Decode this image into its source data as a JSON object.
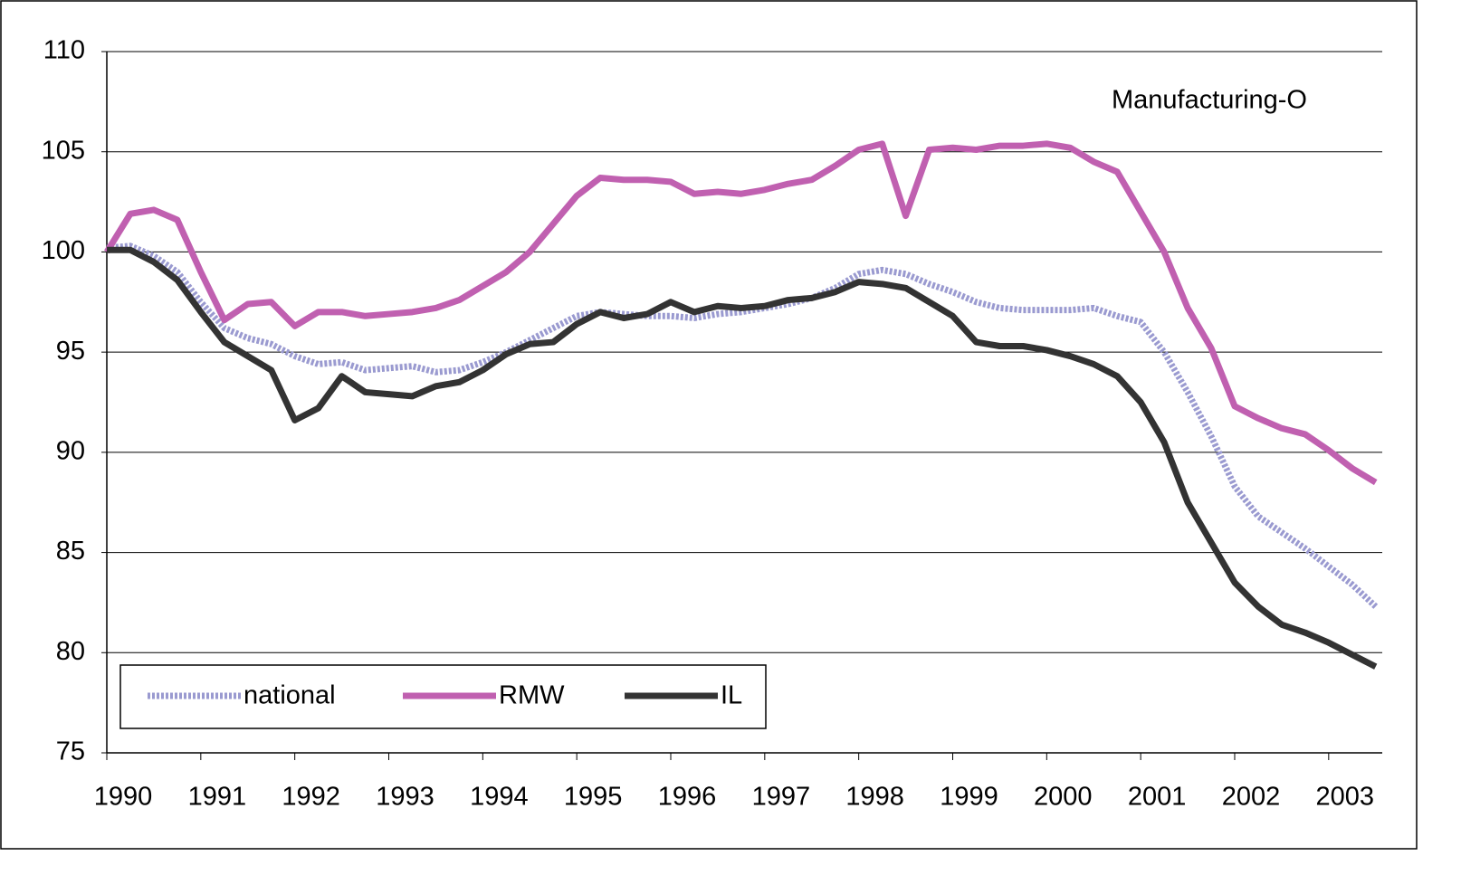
{
  "chart_data": {
    "type": "line",
    "annotation": "Manufacturing-O",
    "x": [
      1990,
      1990.25,
      1990.5,
      1990.75,
      1991,
      1991.25,
      1991.5,
      1991.75,
      1992,
      1992.25,
      1992.5,
      1992.75,
      1993,
      1993.25,
      1993.5,
      1993.75,
      1994,
      1994.25,
      1994.5,
      1994.75,
      1995,
      1995.25,
      1995.5,
      1995.75,
      1996,
      1996.25,
      1996.5,
      1996.75,
      1997,
      1997.25,
      1997.5,
      1997.75,
      1998,
      1998.25,
      1998.5,
      1998.75,
      1999,
      1999.25,
      1999.5,
      1999.75,
      2000,
      2000.25,
      2000.5,
      2000.75,
      2001,
      2001.25,
      2001.5,
      2001.75,
      2002,
      2002.25,
      2002.5,
      2002.75,
      2003,
      2003.25,
      2003.5
    ],
    "series": [
      {
        "name": "national",
        "color": "#9a9ad0",
        "values": [
          100.2,
          100.3,
          99.8,
          99.0,
          97.5,
          96.2,
          95.7,
          95.4,
          94.8,
          94.4,
          94.5,
          94.1,
          94.2,
          94.3,
          94.0,
          94.1,
          94.5,
          95.0,
          95.6,
          96.2,
          96.8,
          97.0,
          96.9,
          96.8,
          96.8,
          96.7,
          96.9,
          97.0,
          97.2,
          97.4,
          97.7,
          98.2,
          98.9,
          99.1,
          98.9,
          98.4,
          98.0,
          97.5,
          97.2,
          97.1,
          97.1,
          97.1,
          97.2,
          96.8,
          96.5,
          95.0,
          93.0,
          90.8,
          88.3,
          86.8,
          86.0,
          85.2,
          84.3,
          83.4,
          82.3
        ]
      },
      {
        "name": "RMW",
        "color": "#c060b0",
        "values": [
          100.0,
          101.9,
          102.1,
          101.6,
          99.0,
          96.6,
          97.4,
          97.5,
          96.3,
          97.0,
          97.0,
          96.8,
          96.9,
          97.0,
          97.2,
          97.6,
          98.3,
          99.0,
          100.0,
          101.4,
          102.8,
          103.7,
          103.6,
          103.6,
          103.5,
          102.9,
          103.0,
          102.9,
          103.1,
          103.4,
          103.6,
          104.3,
          105.1,
          105.4,
          101.8,
          105.1,
          105.2,
          105.1,
          105.3,
          105.3,
          105.4,
          105.2,
          104.5,
          104.0,
          102.0,
          100.0,
          97.2,
          95.2,
          92.3,
          91.7,
          91.2,
          90.9,
          90.1,
          89.2,
          88.5
        ]
      },
      {
        "name": "IL",
        "color": "#333333",
        "values": [
          100.1,
          100.1,
          99.5,
          98.6,
          97.0,
          95.5,
          94.8,
          94.1,
          91.6,
          92.2,
          93.8,
          93.0,
          92.9,
          92.8,
          93.3,
          93.5,
          94.1,
          94.9,
          95.4,
          95.5,
          96.4,
          97.0,
          96.7,
          96.9,
          97.5,
          97.0,
          97.3,
          97.2,
          97.3,
          97.6,
          97.7,
          98.0,
          98.5,
          98.4,
          98.2,
          97.5,
          96.8,
          95.5,
          95.3,
          95.3,
          95.1,
          94.8,
          94.4,
          93.8,
          92.5,
          90.5,
          87.5,
          85.5,
          83.5,
          82.3,
          81.4,
          81.0,
          80.5,
          79.9,
          79.3
        ]
      }
    ],
    "xlim": [
      1990,
      2003.57
    ],
    "xticks": [
      1990,
      1991,
      1992,
      1993,
      1994,
      1995,
      1996,
      1997,
      1998,
      1999,
      2000,
      2001,
      2002,
      2003
    ],
    "ylim": [
      75,
      110
    ],
    "yticks": [
      75,
      80,
      85,
      90,
      95,
      100,
      105,
      110
    ],
    "grid": true
  }
}
